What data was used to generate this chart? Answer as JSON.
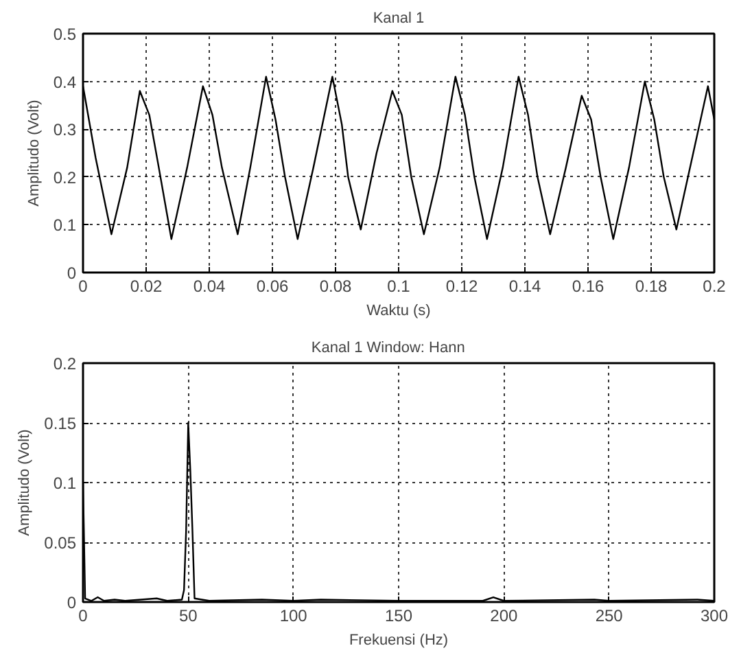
{
  "chart_data": [
    {
      "type": "line",
      "title": "Kanal 1",
      "xlabel": "Waktu (s)",
      "ylabel": "Amplitudo (Volt)",
      "xlim": [
        0,
        0.2
      ],
      "ylim": [
        0,
        0.5
      ],
      "xticks": [
        0,
        0.02,
        0.04,
        0.06,
        0.08,
        0.1,
        0.12,
        0.14,
        0.16,
        0.18,
        0.2
      ],
      "yticks": [
        0,
        0.1,
        0.2,
        0.3,
        0.4,
        0.5
      ],
      "grid": true,
      "line_style": "solid",
      "series": [
        {
          "color": "#000000",
          "x": [
            0,
            0.004,
            0.009,
            0.014,
            0.018,
            0.021,
            0.024,
            0.028,
            0.033,
            0.038,
            0.041,
            0.044,
            0.049,
            0.053,
            0.058,
            0.061,
            0.064,
            0.068,
            0.073,
            0.079,
            0.082,
            0.084,
            0.088,
            0.093,
            0.098,
            0.101,
            0.104,
            0.108,
            0.113,
            0.118,
            0.121,
            0.124,
            0.128,
            0.133,
            0.138,
            0.141,
            0.144,
            0.148,
            0.153,
            0.158,
            0.161,
            0.164,
            0.168,
            0.173,
            0.178,
            0.181,
            0.184,
            0.188,
            0.193,
            0.198,
            0.2
          ],
          "values": [
            0.39,
            0.24,
            0.08,
            0.22,
            0.38,
            0.33,
            0.22,
            0.07,
            0.22,
            0.39,
            0.33,
            0.22,
            0.08,
            0.22,
            0.41,
            0.32,
            0.2,
            0.07,
            0.22,
            0.41,
            0.31,
            0.2,
            0.09,
            0.25,
            0.38,
            0.33,
            0.2,
            0.08,
            0.22,
            0.41,
            0.33,
            0.2,
            0.07,
            0.22,
            0.41,
            0.33,
            0.2,
            0.08,
            0.22,
            0.37,
            0.32,
            0.2,
            0.07,
            0.22,
            0.4,
            0.32,
            0.2,
            0.09,
            0.24,
            0.39,
            0.32
          ]
        }
      ]
    },
    {
      "type": "line",
      "title": "Kanal 1      Window: Hann",
      "xlabel": "Frekuensi (Hz)",
      "ylabel": "Amplitudo (Volt)",
      "xlim": [
        0,
        300
      ],
      "ylim": [
        0,
        0.2
      ],
      "xticks": [
        0,
        50,
        100,
        150,
        200,
        250,
        300
      ],
      "yticks": [
        0,
        0.05,
        0.1,
        0.15,
        0.2
      ],
      "grid": true,
      "line_style": "solid",
      "series": [
        {
          "color": "#000000",
          "x": [
            0,
            1,
            4,
            7,
            10,
            15,
            20,
            35,
            40,
            47,
            48,
            49,
            50,
            51,
            52,
            53,
            60,
            85,
            100,
            113,
            150,
            190,
            195,
            200,
            243,
            250,
            292,
            300
          ],
          "values": [
            0.1,
            0.003,
            0.001,
            0.004,
            0.001,
            0.002,
            0.001,
            0.003,
            0.001,
            0.002,
            0.01,
            0.06,
            0.15,
            0.11,
            0.06,
            0.003,
            0.001,
            0.002,
            0.001,
            0.002,
            0.001,
            0.001,
            0.004,
            0.001,
            0.002,
            0.001,
            0.002,
            0.001
          ]
        }
      ]
    }
  ]
}
